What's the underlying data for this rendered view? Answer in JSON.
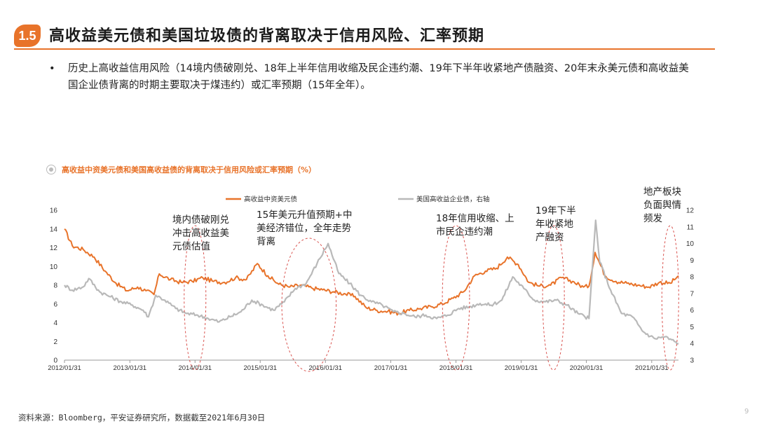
{
  "header": {
    "section_number": "1.5",
    "title": "高收益美元债和美国垃圾债的背离取决于信用风险、汇率预期"
  },
  "bullet": {
    "marker": "•",
    "text": "历史上高收益信用风险（14境内债破刚兑、18年上半年信用收缩及民企违约潮、19年下半年收紧地产债融资、20年末永美元债和高收益美国企业债背离的时期主要取决于煤违约）或汇率预期（15年全年）。"
  },
  "chart_data": {
    "type": "line",
    "title": "高收益中资美元债和美国高收益债的背离取决于信用风险或汇率预期（%）",
    "x_range": [
      "2012/01/31",
      "2021/06/30"
    ],
    "x_ticks": [
      "2012/01/31",
      "2013/01/31",
      "2014/01/31",
      "2015/01/31",
      "2016/01/31",
      "2017/01/31",
      "2018/01/31",
      "2019/01/31",
      "2020/01/31",
      "2021/01/31"
    ],
    "y_left": {
      "min": 0,
      "max": 16,
      "ticks": [
        0,
        2,
        4,
        6,
        8,
        10,
        12,
        14,
        16
      ]
    },
    "y_right": {
      "min": 3,
      "max": 12,
      "ticks": [
        3,
        4,
        5,
        6,
        7,
        8,
        9,
        10,
        11,
        12
      ]
    },
    "colors": {
      "series1": "#e8732a",
      "series2": "#b9b9b9",
      "annotation": "#d9534f"
    },
    "series": [
      {
        "name": "高收益中资美元债",
        "axis": "left",
        "points": [
          [
            "2012/01/31",
            14.0
          ],
          [
            "2012/03/15",
            12.2
          ],
          [
            "2012/05/15",
            11.8
          ],
          [
            "2012/07/15",
            11.0
          ],
          [
            "2012/09/15",
            9.5
          ],
          [
            "2012/11/15",
            8.2
          ],
          [
            "2013/01/15",
            7.4
          ],
          [
            "2013/03/15",
            7.8
          ],
          [
            "2013/05/01",
            7.4
          ],
          [
            "2013/06/15",
            7.0
          ],
          [
            "2013/07/15",
            9.2
          ],
          [
            "2013/09/15",
            8.6
          ],
          [
            "2013/11/15",
            8.3
          ],
          [
            "2014/01/15",
            8.4
          ],
          [
            "2014/03/15",
            8.8
          ],
          [
            "2014/05/15",
            8.4
          ],
          [
            "2014/07/15",
            8.3
          ],
          [
            "2014/09/15",
            8.8
          ],
          [
            "2014/11/15",
            8.6
          ],
          [
            "2015/01/15",
            10.3
          ],
          [
            "2015/03/15",
            9.0
          ],
          [
            "2015/05/15",
            8.1
          ],
          [
            "2015/07/15",
            7.8
          ],
          [
            "2015/09/15",
            8.0
          ],
          [
            "2015/11/15",
            7.7
          ],
          [
            "2016/01/15",
            7.5
          ],
          [
            "2016/03/15",
            7.3
          ],
          [
            "2016/05/15",
            7.1
          ],
          [
            "2016/07/15",
            6.8
          ],
          [
            "2016/09/15",
            5.6
          ],
          [
            "2016/11/15",
            5.3
          ],
          [
            "2017/01/15",
            5.2
          ],
          [
            "2017/03/15",
            5.0
          ],
          [
            "2017/05/15",
            5.3
          ],
          [
            "2017/07/15",
            5.5
          ],
          [
            "2017/09/15",
            5.7
          ],
          [
            "2017/11/15",
            6.0
          ],
          [
            "2018/01/15",
            6.6
          ],
          [
            "2018/03/15",
            7.3
          ],
          [
            "2018/05/15",
            9.0
          ],
          [
            "2018/07/15",
            9.5
          ],
          [
            "2018/09/15",
            9.8
          ],
          [
            "2018/11/15",
            11.0
          ],
          [
            "2019/01/15",
            10.2
          ],
          [
            "2019/03/15",
            8.3
          ],
          [
            "2019/05/15",
            7.9
          ],
          [
            "2019/07/15",
            8.0
          ],
          [
            "2019/09/15",
            8.8
          ],
          [
            "2019/11/15",
            8.4
          ],
          [
            "2020/01/15",
            7.8
          ],
          [
            "2020/02/15",
            7.9
          ],
          [
            "2020/03/20",
            11.5
          ],
          [
            "2020/05/15",
            9.0
          ],
          [
            "2020/07/15",
            8.4
          ],
          [
            "2020/09/15",
            8.2
          ],
          [
            "2020/11/15",
            8.0
          ],
          [
            "2021/01/15",
            7.8
          ],
          [
            "2021/03/15",
            8.3
          ],
          [
            "2021/05/15",
            8.2
          ],
          [
            "2021/06/30",
            9.0
          ]
        ]
      },
      {
        "name": "美国高收益企业债，右轴",
        "axis": "right",
        "points": [
          [
            "2012/01/31",
            7.5
          ],
          [
            "2012/03/15",
            7.2
          ],
          [
            "2012/05/15",
            7.4
          ],
          [
            "2012/06/15",
            7.9
          ],
          [
            "2012/08/15",
            7.1
          ],
          [
            "2012/10/15",
            6.8
          ],
          [
            "2012/12/15",
            6.5
          ],
          [
            "2013/02/15",
            6.3
          ],
          [
            "2013/04/15",
            6.0
          ],
          [
            "2013/05/15",
            5.6
          ],
          [
            "2013/06/25",
            6.9
          ],
          [
            "2013/08/15",
            6.6
          ],
          [
            "2013/10/15",
            6.1
          ],
          [
            "2013/12/15",
            5.8
          ],
          [
            "2014/02/15",
            5.7
          ],
          [
            "2014/04/15",
            5.5
          ],
          [
            "2014/06/15",
            5.3
          ],
          [
            "2014/08/15",
            5.6
          ],
          [
            "2014/10/15",
            5.9
          ],
          [
            "2014/12/15",
            6.6
          ],
          [
            "2015/02/15",
            6.3
          ],
          [
            "2015/04/15",
            6.0
          ],
          [
            "2015/06/15",
            6.5
          ],
          [
            "2015/08/15",
            7.3
          ],
          [
            "2015/10/15",
            7.6
          ],
          [
            "2015/12/15",
            8.8
          ],
          [
            "2016/02/15",
            10.0
          ],
          [
            "2016/04/15",
            8.2
          ],
          [
            "2016/06/15",
            7.6
          ],
          [
            "2016/08/15",
            6.9
          ],
          [
            "2016/10/15",
            6.5
          ],
          [
            "2016/12/15",
            6.3
          ],
          [
            "2017/02/15",
            5.9
          ],
          [
            "2017/04/15",
            5.8
          ],
          [
            "2017/06/15",
            5.6
          ],
          [
            "2017/08/15",
            5.7
          ],
          [
            "2017/10/15",
            5.5
          ],
          [
            "2017/12/15",
            5.7
          ],
          [
            "2018/02/15",
            6.1
          ],
          [
            "2018/04/15",
            6.2
          ],
          [
            "2018/06/15",
            6.4
          ],
          [
            "2018/08/15",
            6.3
          ],
          [
            "2018/10/15",
            6.6
          ],
          [
            "2018/12/15",
            8.0
          ],
          [
            "2019/02/15",
            7.3
          ],
          [
            "2019/04/15",
            6.6
          ],
          [
            "2019/06/15",
            6.5
          ],
          [
            "2019/08/15",
            6.6
          ],
          [
            "2019/10/15",
            6.3
          ],
          [
            "2019/12/15",
            5.8
          ],
          [
            "2020/02/15",
            5.5
          ],
          [
            "2020/03/23",
            11.4
          ],
          [
            "2020/04/15",
            8.9
          ],
          [
            "2020/06/15",
            7.2
          ],
          [
            "2020/08/15",
            5.8
          ],
          [
            "2020/10/15",
            5.6
          ],
          [
            "2020/12/15",
            4.7
          ],
          [
            "2021/02/15",
            4.3
          ],
          [
            "2021/04/15",
            4.4
          ],
          [
            "2021/06/30",
            4.0
          ]
        ]
      }
    ],
    "annotations": [
      {
        "text": [
          "境内债破刚兑",
          "冲击高收益美",
          "元债估值"
        ],
        "ellipse_center_date": "2014/01/31",
        "ellipse_span_months": 4
      },
      {
        "text": [
          "15年美元升值预期+中",
          "美经济错位，全年走势",
          "背离"
        ],
        "ellipse_center_date": "2015/10/31",
        "ellipse_span_months": 10
      },
      {
        "text": [
          "18年信用收缩、上",
          "市民企违约潮"
        ],
        "ellipse_center_date": "2018/01/31",
        "ellipse_span_months": 5
      },
      {
        "text": [
          "19年下半",
          "年收紧地",
          "产融资"
        ],
        "ellipse_center_date": "2019/07/31",
        "ellipse_span_months": 4
      },
      {
        "text": [
          "地产板块",
          "负面舆情",
          "频发"
        ],
        "ellipse_center_date": "2021/05/15",
        "ellipse_span_months": 3
      }
    ]
  },
  "footer": {
    "source": "资料来源：Bloomberg，平安证券研究所，数据截至2021年6月30日",
    "page_number": "9"
  }
}
